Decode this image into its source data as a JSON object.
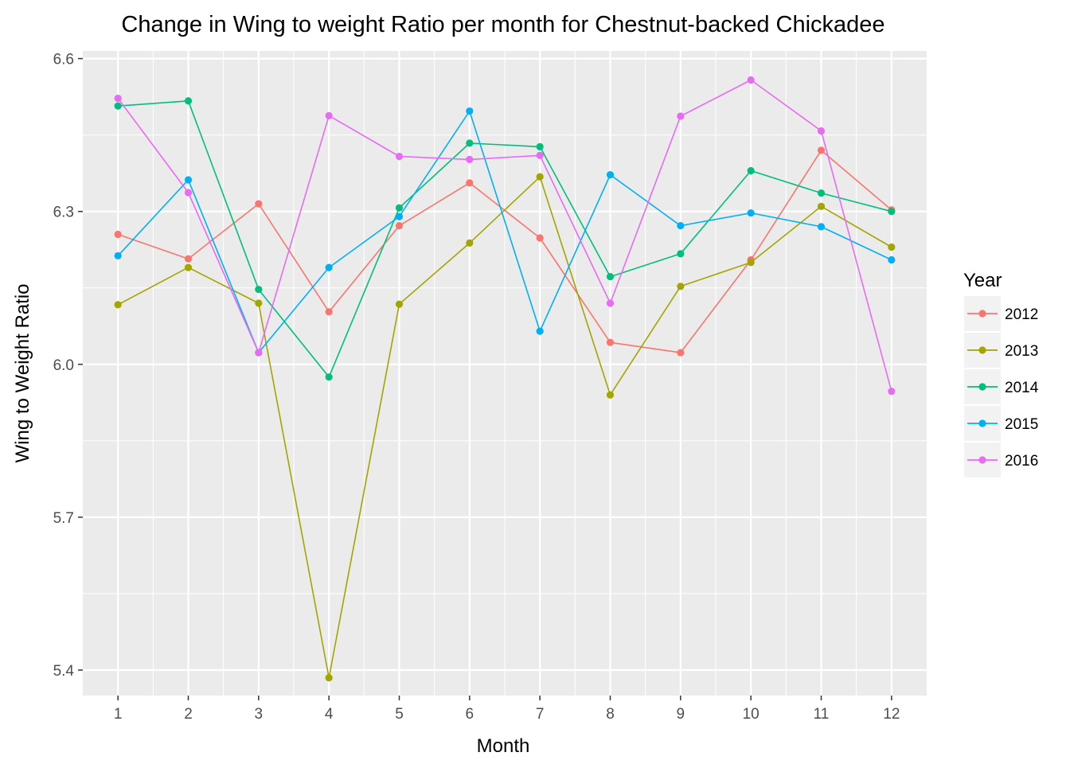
{
  "chart_data": {
    "type": "line",
    "title": "Change in Wing to weight Ratio per month for Chestnut-backed Chickadee",
    "xlabel": "Month",
    "ylabel": "Wing to Weight Ratio",
    "x": [
      1,
      2,
      3,
      4,
      5,
      6,
      7,
      8,
      9,
      10,
      11,
      12
    ],
    "xticks": [
      "1",
      "2",
      "3",
      "4",
      "5",
      "6",
      "7",
      "8",
      "9",
      "10",
      "11",
      "12"
    ],
    "yticks": [
      "5.4",
      "5.7",
      "6.0",
      "6.3",
      "6.6"
    ],
    "ylim": [
      5.35,
      6.615
    ],
    "xlim": [
      0.5,
      12.5
    ],
    "grid": true,
    "legend": {
      "title": "Year",
      "position": "right"
    },
    "series": [
      {
        "name": "2012",
        "color": "#F8766D",
        "values": [
          6.255,
          6.207,
          6.315,
          6.103,
          6.272,
          6.356,
          6.248,
          6.043,
          6.023,
          6.205,
          6.42,
          6.303
        ]
      },
      {
        "name": "2013",
        "color": "#A3A500",
        "values": [
          6.117,
          6.19,
          6.12,
          5.385,
          6.118,
          6.238,
          6.368,
          5.94,
          6.153,
          6.2,
          6.31,
          6.23
        ]
      },
      {
        "name": "2014",
        "color": "#00BF7D",
        "values": [
          6.507,
          6.517,
          6.147,
          5.975,
          6.307,
          6.434,
          6.427,
          6.172,
          6.217,
          6.38,
          6.336,
          6.3
        ]
      },
      {
        "name": "2015",
        "color": "#00B0F6",
        "values": [
          6.213,
          6.362,
          6.023,
          6.19,
          6.29,
          6.497,
          6.065,
          6.372,
          6.272,
          6.297,
          6.27,
          6.205
        ]
      },
      {
        "name": "2016",
        "color": "#E76BF3",
        "values": [
          6.522,
          6.337,
          6.023,
          6.488,
          6.408,
          6.402,
          6.41,
          6.12,
          6.487,
          6.558,
          6.458,
          5.947
        ]
      }
    ]
  }
}
